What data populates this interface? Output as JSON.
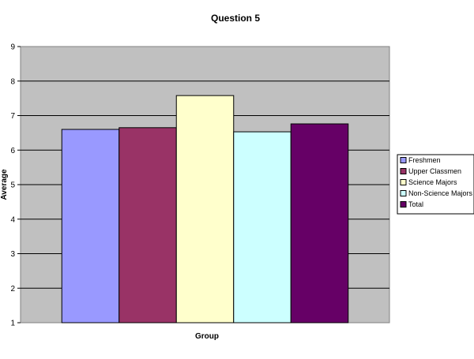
{
  "chart_data": {
    "type": "bar",
    "title": "Question 5",
    "xlabel": "Group",
    "ylabel": "Average",
    "ylim": [
      1,
      9
    ],
    "yticks": [
      1,
      2,
      3,
      4,
      5,
      6,
      7,
      8,
      9
    ],
    "grid": true,
    "legend_position": "right",
    "plot_background": "#c0c0c0",
    "series": [
      {
        "name": "Freshmen",
        "value": 6.6,
        "color": "#9999ff"
      },
      {
        "name": "Upper Classmen",
        "value": 6.65,
        "color": "#993366"
      },
      {
        "name": "Science Majors",
        "value": 7.58,
        "color": "#ffffcc"
      },
      {
        "name": "Non-Science Majors",
        "value": 6.53,
        "color": "#ccffff"
      },
      {
        "name": "Total",
        "value": 6.76,
        "color": "#660066"
      }
    ]
  }
}
